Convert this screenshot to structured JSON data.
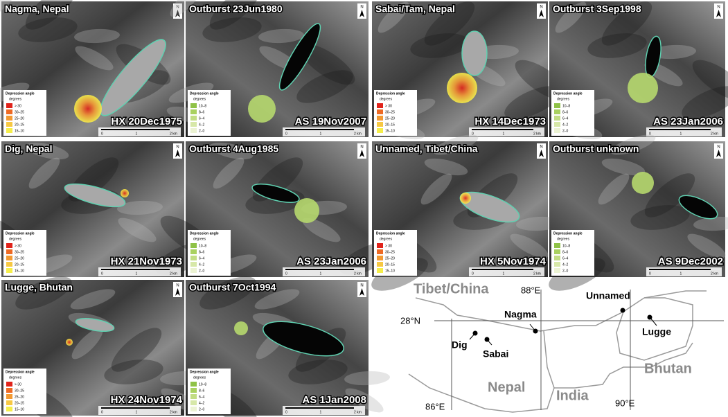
{
  "legend": {
    "title": "Depression angle",
    "unit": "degrees",
    "hx": [
      {
        "label": "> 30",
        "color": "#e0231b"
      },
      {
        "label": "30–25",
        "color": "#ee6a24"
      },
      {
        "label": "25–20",
        "color": "#f39a33"
      },
      {
        "label": "20–15",
        "color": "#f7c843"
      },
      {
        "label": "15–10",
        "color": "#f5ee4a"
      }
    ],
    "as": [
      {
        "label": "10–8",
        "color": "#8fc247"
      },
      {
        "label": "8–6",
        "color": "#a9d160"
      },
      {
        "label": "6–4",
        "color": "#c2dd84"
      },
      {
        "label": "4–2",
        "color": "#d7e8a8"
      },
      {
        "label": "2–0",
        "color": "#ecf3d3"
      }
    ]
  },
  "scale": [
    "0",
    "1",
    "2 km"
  ],
  "north": "N",
  "panels": [
    {
      "site": "Nagma, Nepal",
      "hx_date": "HX 20Dec1975",
      "outburst": "Outburst 23Jun1980",
      "as_date": "AS 19Nov2007"
    },
    {
      "site": "Sabai/Tam, Nepal",
      "hx_date": "HX 14Dec1973",
      "outburst": "Outburst 3Sep1998",
      "as_date": "AS 23Jan2006"
    },
    {
      "site": "Dig, Nepal",
      "hx_date": "HX 21Nov1973",
      "outburst": "Outburst 4Aug1985",
      "as_date": "AS 23Jan2006"
    },
    {
      "site": "Unnamed, Tibet/China",
      "hx_date": "HX 5Nov1974",
      "outburst": "Outburst unknown",
      "as_date": "AS 9Dec2002"
    },
    {
      "site": "Lugge, Bhutan",
      "hx_date": "HX 24Nov1974",
      "outburst": "Outburst 7Oct1994",
      "as_date": "AS 1Jan2008"
    }
  ],
  "map": {
    "countries": [
      "Tibet/China",
      "Nepal",
      "India",
      "Bhutan"
    ],
    "grid": [
      "88°E",
      "28°N",
      "86°E",
      "90°E"
    ],
    "sites": [
      "Unnamed",
      "Nagma",
      "Lugge",
      "Dig",
      "Sabai"
    ]
  }
}
